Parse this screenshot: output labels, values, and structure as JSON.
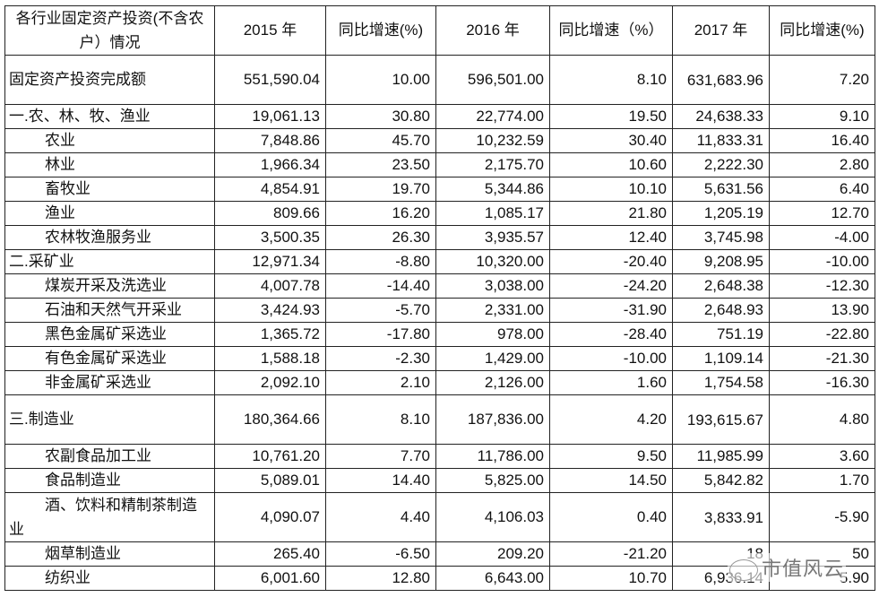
{
  "header": [
    "各行业固定资产投资(不含农户）情况",
    "2015 年",
    "同比增速(%)",
    "2016 年",
    "同比增速（%）",
    "2017 年",
    "同比增速(%)"
  ],
  "rows": [
    {
      "name": "固定资产投资完成额",
      "level": 0,
      "tall": true,
      "values": [
        "551,590.04",
        "10.00",
        "596,501.00",
        "8.10",
        "631,683.96",
        "7.20"
      ]
    },
    {
      "name": "一.农、林、牧、渔业",
      "level": 0,
      "values": [
        "19,061.13",
        "30.80",
        "22,774.00",
        "19.50",
        "24,638.33",
        "9.10"
      ]
    },
    {
      "name": "农业",
      "level": 1,
      "values": [
        "7,848.86",
        "45.70",
        "10,232.59",
        "30.40",
        "11,833.31",
        "16.40"
      ]
    },
    {
      "name": "林业",
      "level": 1,
      "values": [
        "1,966.34",
        "23.50",
        "2,175.70",
        "10.60",
        "2,222.30",
        "2.80"
      ]
    },
    {
      "name": "畜牧业",
      "level": 1,
      "values": [
        "4,854.91",
        "19.70",
        "5,344.86",
        "10.10",
        "5,631.56",
        "6.40"
      ]
    },
    {
      "name": "渔业",
      "level": 1,
      "values": [
        "809.66",
        "16.20",
        "1,085.17",
        "21.80",
        "1,205.19",
        "12.70"
      ]
    },
    {
      "name": "农林牧渔服务业",
      "level": 1,
      "values": [
        "3,500.35",
        "26.30",
        "3,935.57",
        "12.40",
        "3,745.98",
        "-4.00"
      ]
    },
    {
      "name": "二.采矿业",
      "level": 0,
      "values": [
        "12,971.34",
        "-8.80",
        "10,320.00",
        "-20.40",
        "9,208.95",
        "-10.00"
      ]
    },
    {
      "name": "煤炭开采及洗选业",
      "level": 1,
      "values": [
        "4,007.78",
        "-14.40",
        "3,038.00",
        "-24.20",
        "2,648.38",
        "-12.30"
      ]
    },
    {
      "name": "石油和天然气开采业",
      "level": 1,
      "values": [
        "3,424.93",
        "-5.70",
        "2,331.00",
        "-31.90",
        "2,648.93",
        "13.90"
      ]
    },
    {
      "name": "黑色金属矿采选业",
      "level": 1,
      "values": [
        "1,365.72",
        "-17.80",
        "978.00",
        "-28.40",
        "751.19",
        "-22.80"
      ]
    },
    {
      "name": "有色金属矿采选业",
      "level": 1,
      "values": [
        "1,588.18",
        "-2.30",
        "1,429.00",
        "-10.00",
        "1,109.14",
        "-21.30"
      ]
    },
    {
      "name": "非金属矿采选业",
      "level": 1,
      "values": [
        "2,092.10",
        "2.10",
        "2,126.00",
        "1.60",
        "1,754.58",
        "-16.30"
      ]
    },
    {
      "name": "三.制造业",
      "level": 0,
      "tall": true,
      "values": [
        "180,364.66",
        "8.10",
        "187,836.00",
        "4.20",
        "193,615.67",
        "4.80"
      ]
    },
    {
      "name": "农副食品加工业",
      "level": 1,
      "values": [
        "10,761.20",
        "7.70",
        "11,786.00",
        "9.50",
        "11,985.99",
        "3.60"
      ]
    },
    {
      "name": "食品制造业",
      "level": 1,
      "values": [
        "5,089.01",
        "14.40",
        "5,825.00",
        "14.50",
        "5,842.82",
        "1.70"
      ]
    },
    {
      "name": "酒、饮料和精制茶制造业",
      "level": 1,
      "tall": true,
      "values": [
        "4,090.07",
        "4.40",
        "4,106.03",
        "0.40",
        "3,833.91",
        "-5.90"
      ]
    },
    {
      "name": "烟草制造业",
      "level": 1,
      "values": [
        "265.40",
        "-6.50",
        "209.20",
        "-21.20",
        "18",
        "50"
      ]
    },
    {
      "name": "纺织业",
      "level": 1,
      "values": [
        "6,001.60",
        "12.80",
        "6,643.00",
        "10.70",
        "6,936.14",
        "5.90"
      ]
    }
  ],
  "watermark": "市值风云"
}
